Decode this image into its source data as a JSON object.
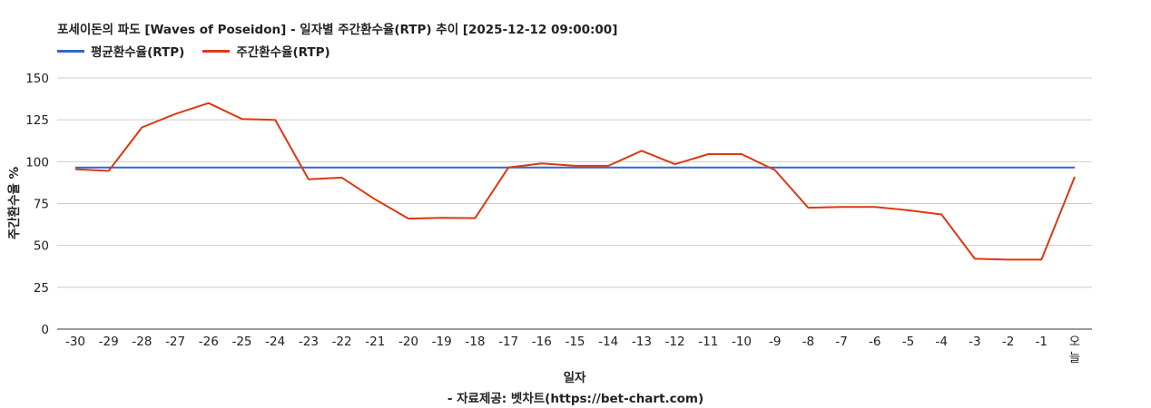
{
  "chart_data": {
    "type": "line",
    "title": "포세이돈의 파도 [Waves of Poseidon] - 일자별 주간환수율(RTP) 추이 [2025-12-12 09:00:00]",
    "xlabel": "일자",
    "ylabel": "주간환수율 %",
    "source": "- 자료제공: 벳차트(https://bet-chart.com)",
    "ylim": [
      0,
      150
    ],
    "yticks": [
      "0",
      "25",
      "50",
      "75",
      "100",
      "125",
      "150"
    ],
    "categories": [
      "-30",
      "-29",
      "-28",
      "-27",
      "-26",
      "-25",
      "-24",
      "-23",
      "-22",
      "-21",
      "-20",
      "-19",
      "-18",
      "-17",
      "-16",
      "-15",
      "-14",
      "-13",
      "-12",
      "-11",
      "-10",
      "-9",
      "-8",
      "-7",
      "-6",
      "-5",
      "-4",
      "-3",
      "-2",
      "-1",
      "오늘"
    ],
    "grid": true,
    "legend_position": "top-left",
    "series": [
      {
        "name": "평균환수율(RTP)",
        "color": "#3366cc",
        "values": [
          96.5,
          96.5,
          96.5,
          96.5,
          96.5,
          96.5,
          96.5,
          96.5,
          96.5,
          96.5,
          96.5,
          96.5,
          96.5,
          96.5,
          96.5,
          96.5,
          96.5,
          96.5,
          96.5,
          96.5,
          96.5,
          96.5,
          96.5,
          96.5,
          96.5,
          96.5,
          96.5,
          96.5,
          96.5,
          96.5,
          96.5
        ]
      },
      {
        "name": "주간환수율(RTP)",
        "color": "#dc3912",
        "values": [
          95.5,
          94.5,
          120.5,
          128.5,
          135,
          125.5,
          125,
          89.5,
          90.5,
          77.5,
          66,
          66.5,
          66.3,
          96.5,
          99,
          97.5,
          97.5,
          106.5,
          98.5,
          104.5,
          104.5,
          95,
          72.5,
          73,
          73,
          71,
          68.5,
          42,
          41.5,
          41.5,
          91
        ]
      }
    ]
  }
}
